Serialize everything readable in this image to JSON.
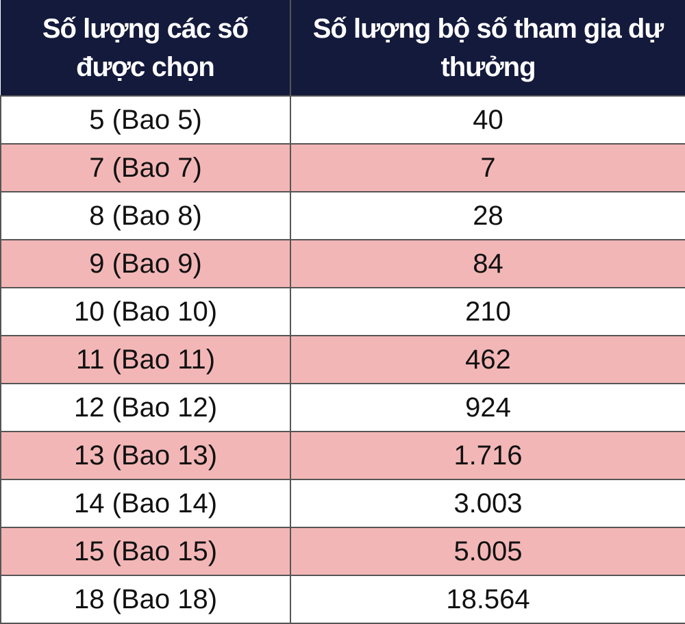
{
  "table": {
    "header": [
      "Số lượng các số được chọn",
      "Số lượng bộ số tham gia dự thưởng"
    ],
    "rows": [
      [
        "5 (Bao 5)",
        "40"
      ],
      [
        "7 (Bao 7)",
        "7"
      ],
      [
        "8 (Bao 8)",
        "28"
      ],
      [
        "9 (Bao 9)",
        "84"
      ],
      [
        "10 (Bao 10)",
        "210"
      ],
      [
        "11 (Bao 11)",
        "462"
      ],
      [
        "12 (Bao 12)",
        "924"
      ],
      [
        "13 (Bao 13)",
        "1.716"
      ],
      [
        "14 (Bao 14)",
        "3.003"
      ],
      [
        "15 (Bao 15)",
        "5.005"
      ],
      [
        "18 (Bao 18)",
        "18.564"
      ]
    ]
  }
}
